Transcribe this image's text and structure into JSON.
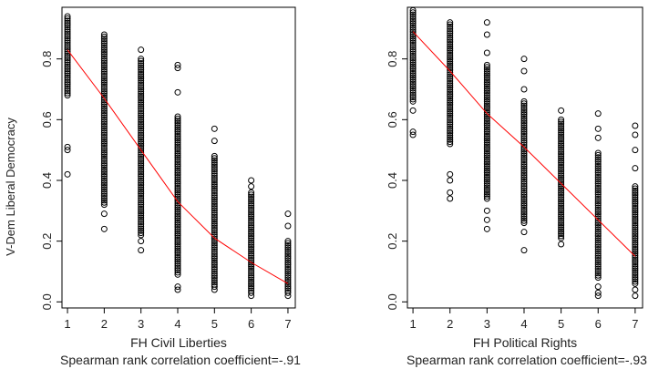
{
  "figure": {
    "shared_ylabel": "V-Dem Liberal Democracy"
  },
  "chart_data": [
    {
      "type": "scatter",
      "xlabel": "FH Civil Liberties",
      "caption": "Spearman rank correlation coefficient=-.91",
      "x_ticks": [
        "1",
        "2",
        "3",
        "4",
        "5",
        "6",
        "7"
      ],
      "y_ticks": [
        "0.0",
        "0.2",
        "0.4",
        "0.6",
        "0.8"
      ],
      "xlim": [
        0.85,
        7.2
      ],
      "ylim": [
        -0.02,
        0.97
      ],
      "point_color": "#000000",
      "trend_color": "#ff0000",
      "columns": [
        {
          "x": 1,
          "min": 0.68,
          "max": 0.94,
          "outliers": [
            0.51,
            0.5,
            0.42
          ]
        },
        {
          "x": 2,
          "min": 0.32,
          "max": 0.88,
          "outliers": [
            0.29,
            0.24
          ]
        },
        {
          "x": 3,
          "min": 0.22,
          "max": 0.8,
          "outliers": [
            0.83,
            0.2,
            0.17
          ]
        },
        {
          "x": 4,
          "min": 0.09,
          "max": 0.61,
          "outliers": [
            0.78,
            0.77,
            0.69,
            0.05,
            0.04
          ]
        },
        {
          "x": 5,
          "min": 0.05,
          "max": 0.48,
          "outliers": [
            0.57,
            0.53,
            0.04
          ]
        },
        {
          "x": 6,
          "min": 0.03,
          "max": 0.36,
          "outliers": [
            0.4,
            0.38,
            0.02
          ]
        },
        {
          "x": 7,
          "min": 0.03,
          "max": 0.2,
          "outliers": [
            0.29,
            0.25,
            0.02
          ]
        }
      ],
      "trend": {
        "x": [
          1,
          2,
          3,
          4,
          5,
          6,
          7
        ],
        "y": [
          0.83,
          0.67,
          0.5,
          0.33,
          0.21,
          0.13,
          0.06
        ]
      }
    },
    {
      "type": "scatter",
      "xlabel": "FH Political Rights",
      "caption": "Spearman rank correlation coefficient=-.93",
      "x_ticks": [
        "1",
        "2",
        "3",
        "4",
        "5",
        "6",
        "7"
      ],
      "y_ticks": [
        "0.0",
        "0.2",
        "0.4",
        "0.6",
        "0.8"
      ],
      "xlim": [
        0.85,
        7.2
      ],
      "ylim": [
        -0.02,
        0.97
      ],
      "point_color": "#000000",
      "trend_color": "#ff0000",
      "columns": [
        {
          "x": 1,
          "min": 0.66,
          "max": 0.96,
          "outliers": [
            0.63,
            0.56,
            0.55
          ]
        },
        {
          "x": 2,
          "min": 0.52,
          "max": 0.92,
          "outliers": [
            0.42,
            0.4,
            0.36,
            0.34
          ]
        },
        {
          "x": 3,
          "min": 0.34,
          "max": 0.78,
          "outliers": [
            0.92,
            0.88,
            0.82,
            0.3,
            0.27,
            0.24
          ]
        },
        {
          "x": 4,
          "min": 0.26,
          "max": 0.66,
          "outliers": [
            0.8,
            0.76,
            0.7,
            0.23,
            0.17
          ]
        },
        {
          "x": 5,
          "min": 0.21,
          "max": 0.6,
          "outliers": [
            0.63,
            0.19
          ]
        },
        {
          "x": 6,
          "min": 0.08,
          "max": 0.49,
          "outliers": [
            0.62,
            0.57,
            0.54,
            0.05,
            0.03,
            0.02
          ]
        },
        {
          "x": 7,
          "min": 0.06,
          "max": 0.38,
          "outliers": [
            0.58,
            0.55,
            0.5,
            0.44,
            0.04,
            0.02
          ]
        }
      ],
      "trend": {
        "x": [
          1,
          2,
          3,
          4,
          5,
          6,
          7
        ],
        "y": [
          0.89,
          0.76,
          0.62,
          0.51,
          0.39,
          0.27,
          0.15
        ]
      }
    }
  ]
}
